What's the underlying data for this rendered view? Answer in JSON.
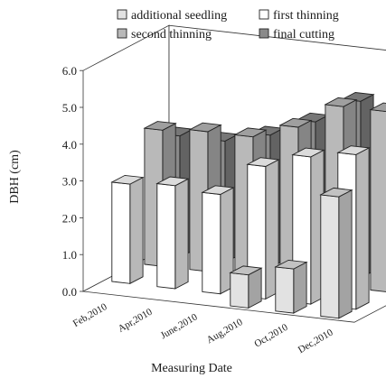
{
  "chart_data": {
    "type": "bar",
    "subtype": "3d-clustered-bar",
    "xlabel": "Measuring Date",
    "ylabel": "DBH (cm)",
    "ylim": [
      0,
      6
    ],
    "yticks": [
      "0.0",
      "1.0",
      "2.0",
      "3.0",
      "4.0",
      "5.0",
      "6.0"
    ],
    "grid": false,
    "legend_position": "top",
    "categories": [
      "Feb,2010",
      "Apr,2010",
      "June,2010",
      "Aug,2010",
      "Oct,2010",
      "Dec,2010"
    ],
    "series": [
      {
        "name": "additional seedling",
        "color": "#e2e2e2",
        "values": [
          null,
          null,
          null,
          0.9,
          1.2,
          3.3
        ]
      },
      {
        "name": "first thinning",
        "color": "#ffffff",
        "values": [
          2.7,
          2.8,
          2.7,
          3.6,
          4.0,
          4.2
        ]
      },
      {
        "name": "second thinning",
        "color": "#b9b9b9",
        "values": [
          3.7,
          3.8,
          3.8,
          4.2,
          4.9,
          4.9
        ]
      },
      {
        "name": "final cutting",
        "color": "#8a8a8a",
        "values": [
          3.3,
          3.3,
          3.6,
          4.1,
          4.8,
          5.3
        ]
      }
    ]
  }
}
